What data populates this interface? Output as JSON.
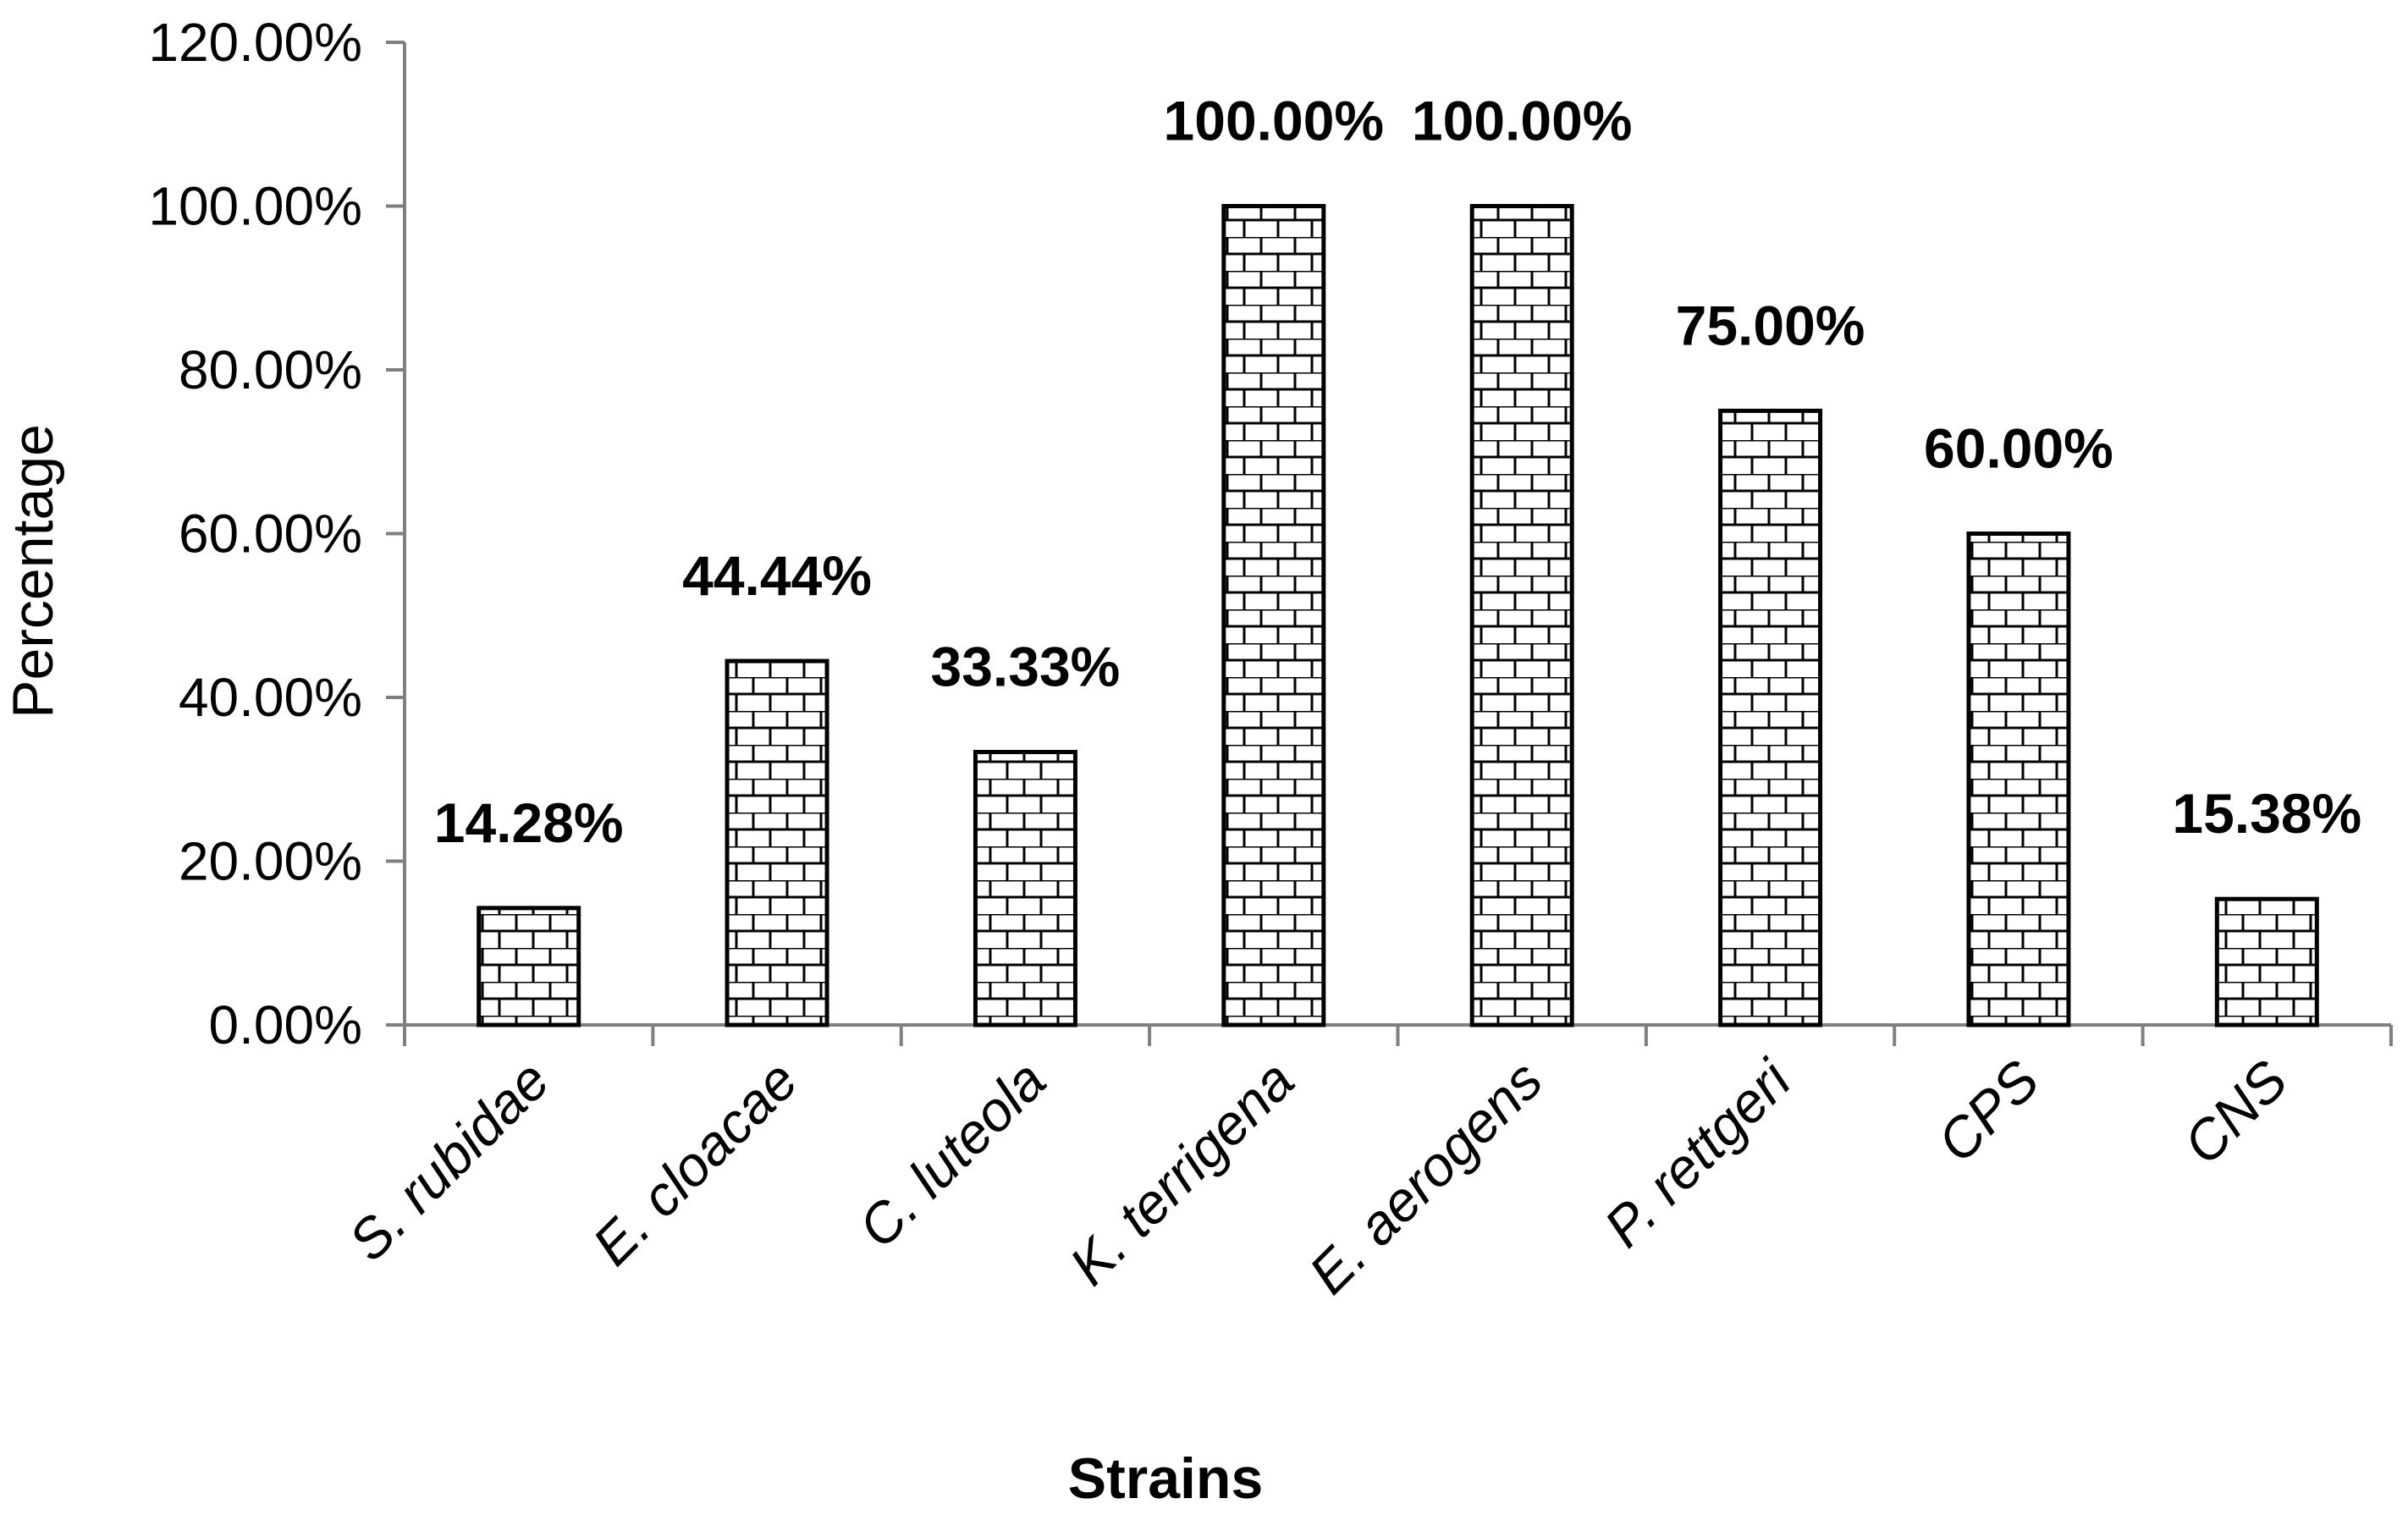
{
  "chart_data": {
    "type": "bar",
    "categories": [
      "S. rubidae",
      "E. cloacae",
      "C. luteola",
      "K. terrigena",
      "E. aerogens",
      "P. rettgeri",
      "CPS",
      "CNS"
    ],
    "values": [
      14.28,
      44.44,
      33.33,
      100.0,
      100.0,
      75.0,
      60.0,
      15.38
    ],
    "data_labels": [
      "14.28%",
      "44.44%",
      "33.33%",
      "100.00%",
      "100.00%",
      "75.00%",
      "60.00%",
      "15.38%"
    ],
    "xlabel": "Strains",
    "ylabel": "Percentage",
    "ylim": [
      0,
      120
    ],
    "yticks": [
      0,
      20,
      40,
      60,
      80,
      100,
      120
    ],
    "ytick_labels": [
      "0.00%",
      "20.00%",
      "40.00%",
      "60.00%",
      "80.00%",
      "100.00%",
      "120.00%"
    ],
    "grid": false,
    "bar_pattern": "brick",
    "colors": {
      "bar_fill": "#ffffff",
      "bar_stroke": "#000000",
      "axis": "#7f7f7f"
    }
  }
}
